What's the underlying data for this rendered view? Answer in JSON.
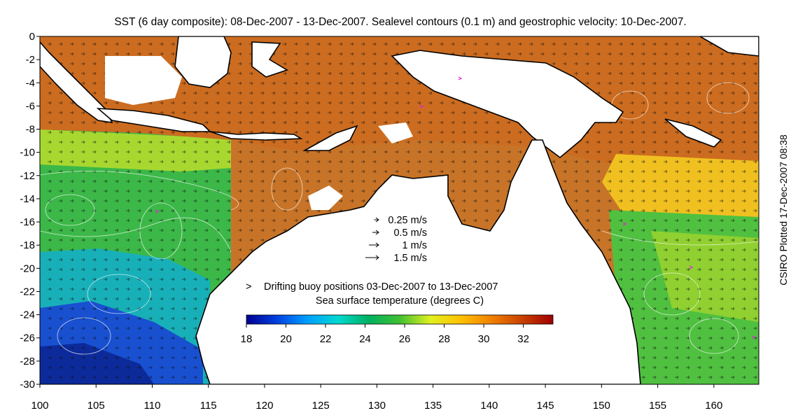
{
  "title": "SST (6 day composite): 08-Dec-2007 - 13-Dec-2007. Sealevel contours (0.1 m) and geostrophic velocity: 10-Dec-2007.",
  "side_label": "CSIRO Plotted 17-Dec-2007 08:38",
  "axes": {
    "x_ticks": [
      "100",
      "105",
      "110",
      "115",
      "120",
      "125",
      "130",
      "135",
      "140",
      "145",
      "150",
      "155",
      "160"
    ],
    "y_ticks": [
      "0",
      "-2",
      "-4",
      "-6",
      "-8",
      "-10",
      "-12",
      "-14",
      "-16",
      "-18",
      "-20",
      "-22",
      "-24",
      "-26",
      "-28",
      "-30"
    ],
    "lon_range": [
      100,
      164
    ],
    "lat_range": [
      -30,
      0
    ]
  },
  "velocity_legend": [
    {
      "label": "0.25 m/s",
      "speed": 0.25
    },
    {
      "label": "0.5 m/s",
      "speed": 0.5
    },
    {
      "label": "1 m/s",
      "speed": 1
    },
    {
      "label": "1.5 m/s",
      "speed": 1.5
    }
  ],
  "buoy_legend": {
    "symbol": ">",
    "label": "Drifting buoy positions 03-Dec-2007 to 13-Dec-2007",
    "color": "#e020e0"
  },
  "colorbar": {
    "title": "Sea surface temperature (degrees C)",
    "min": 18,
    "max": 33.5,
    "ticks": [
      "18",
      "20",
      "22",
      "24",
      "26",
      "28",
      "30",
      "32"
    ],
    "colors": [
      "#00008f",
      "#0040e0",
      "#00a0ff",
      "#00d8d0",
      "#00b060",
      "#40c030",
      "#e0f020",
      "#ffc000",
      "#f08000",
      "#c84000",
      "#a00000"
    ]
  },
  "colors": {
    "land": "#ffffff",
    "coastline": "#000000",
    "contour": "#ffffff",
    "warm_sea": "#d0701c",
    "cool_sea": "#1a40c8"
  }
}
